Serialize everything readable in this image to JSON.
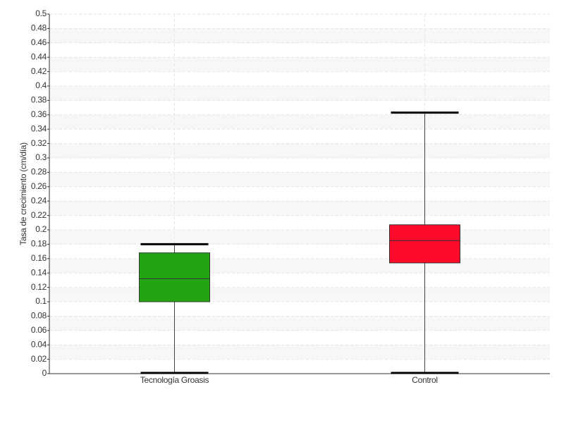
{
  "chart_data": {
    "type": "box",
    "y_label": "Tasa de crecimiento (cm/día)",
    "categories": [
      "Tecnología Groasis",
      "Control"
    ],
    "boxes": [
      {
        "min": 0,
        "q1": 0.1,
        "median": 0.132,
        "q3": 0.168,
        "max": 0.18,
        "color": "#22a511"
      },
      {
        "min": 0,
        "q1": 0.154,
        "median": 0.185,
        "q3": 0.207,
        "max": 0.363,
        "color": "#ff0a2a"
      }
    ],
    "ylim": [
      0,
      0.5
    ],
    "yticks": [
      0,
      0.02,
      0.04,
      0.06,
      0.08,
      0.1,
      0.12,
      0.14,
      0.16,
      0.18,
      0.2,
      0.22,
      0.24,
      0.26,
      0.28,
      0.3,
      0.32,
      0.34,
      0.36,
      0.38,
      0.4,
      0.42,
      0.44,
      0.46,
      0.48,
      0.5
    ],
    "grid": true
  }
}
